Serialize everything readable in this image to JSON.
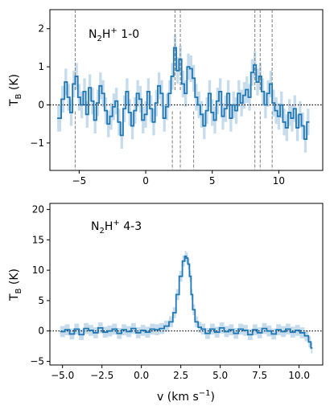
{
  "chart_data": [
    {
      "type": "line",
      "annotation": {
        "main": "N",
        "sub": "2",
        "mid": "H",
        "sup": "+",
        "tail": "  1-0"
      },
      "ylabel": {
        "main": "T",
        "sub": "B",
        "tail": " (K)"
      },
      "xlim": [
        -7.2,
        13.3
      ],
      "ylim": [
        -1.72,
        2.5
      ],
      "xticks": [
        -5,
        0,
        5,
        10
      ],
      "xtick_labels": [
        "−5",
        "0",
        "5",
        "10"
      ],
      "yticks": [
        -1,
        0,
        1,
        2
      ],
      "ytick_labels": [
        "−1",
        "0",
        "1",
        "2"
      ],
      "zero_line": 0,
      "components_top": [
        -5.3,
        2.2,
        2.6,
        8.2,
        8.6,
        9.5
      ],
      "components_bottom": [
        -5.3,
        2.0,
        2.6,
        3.6,
        8.2,
        8.6,
        9.5
      ],
      "line_color": "#1f77b4",
      "band_color": "#c6dcec",
      "series": [
        {
          "x": [
            -6.5,
            -6.2,
            -6.0,
            -5.8,
            -5.6,
            -5.4,
            -5.2,
            -5.0,
            -4.8,
            -4.6,
            -4.4,
            -4.2,
            -4.0,
            -3.8,
            -3.6,
            -3.4,
            -3.2,
            -3.0,
            -2.8,
            -2.6,
            -2.4,
            -2.2,
            -2.0,
            -1.8,
            -1.6,
            -1.4,
            -1.2,
            -1.0,
            -0.8,
            -0.6,
            -0.4,
            -0.2,
            0.0,
            0.2,
            0.4,
            0.6,
            0.8,
            1.0,
            1.2,
            1.4,
            1.6,
            1.8,
            2.0,
            2.2,
            2.4,
            2.6,
            2.8,
            3.0,
            3.2,
            3.4,
            3.6,
            3.8,
            4.0,
            4.2,
            4.4,
            4.6,
            4.8,
            5.0,
            5.2,
            5.4,
            5.6,
            5.8,
            6.0,
            6.2,
            6.4,
            6.6,
            6.8,
            7.0,
            7.2,
            7.4,
            7.6,
            7.8,
            8.0,
            8.2,
            8.4,
            8.6,
            8.8,
            9.0,
            9.2,
            9.4,
            9.6,
            9.8,
            10.0,
            10.2,
            10.4,
            10.6,
            10.8,
            11.0,
            11.2,
            11.4,
            11.6,
            11.8,
            12.0,
            12.2
          ],
          "y": [
            -0.35,
            0.15,
            0.6,
            0.2,
            -0.2,
            0.55,
            0.75,
            0.2,
            0.0,
            0.35,
            -0.25,
            0.45,
            0.1,
            -0.4,
            0.05,
            0.5,
            0.3,
            -0.15,
            -0.5,
            -0.3,
            -0.05,
            0.1,
            -0.45,
            -0.8,
            -0.1,
            0.35,
            -0.2,
            -0.55,
            -0.15,
            0.3,
            0.15,
            -0.4,
            -0.25,
            0.35,
            -0.1,
            -0.45,
            0.05,
            0.5,
            0.3,
            -0.35,
            -0.05,
            0.3,
            0.75,
            1.5,
            0.9,
            1.2,
            0.55,
            0.3,
            1.0,
            0.95,
            0.7,
            0.2,
            0.0,
            -0.25,
            -0.55,
            -0.15,
            0.3,
            -0.2,
            -0.4,
            0.1,
            0.35,
            -0.3,
            -0.1,
            0.3,
            -0.35,
            0.0,
            -0.15,
            0.3,
            0.05,
            0.25,
            0.4,
            0.2,
            0.85,
            1.05,
            0.6,
            0.75,
            0.35,
            0.0,
            0.3,
            0.55,
            0.05,
            -0.15,
            -0.3,
            0.0,
            -0.45,
            -0.6,
            -0.2,
            -0.35,
            -0.1,
            -0.6,
            -0.25,
            -0.55,
            -0.9,
            -0.45
          ],
          "err": 0.35
        }
      ]
    },
    {
      "type": "line",
      "annotation": {
        "main": "N",
        "sub": "2",
        "mid": "H",
        "sup": "+",
        "tail": "  4-3"
      },
      "ylabel": {
        "main": "T",
        "sub": "B",
        "tail": " (K)"
      },
      "xlabel": {
        "main": "v (km s",
        "sup": "−1",
        "tail": ")"
      },
      "xlim": [
        -5.8,
        11.5
      ],
      "ylim": [
        -5.6,
        21.0
      ],
      "xticks": [
        -5.0,
        -2.5,
        0.0,
        2.5,
        5.0,
        7.5,
        10.0
      ],
      "xtick_labels": [
        "−5.0",
        "−2.5",
        "0.0",
        "2.5",
        "5.0",
        "7.5",
        "10.0"
      ],
      "yticks": [
        -5,
        0,
        5,
        10,
        15,
        20
      ],
      "ytick_labels": [
        "−5",
        "0",
        "5",
        "10",
        "15",
        "20"
      ],
      "zero_line": 0,
      "line_color": "#1f77b4",
      "band_color": "#c6dcec",
      "series": [
        {
          "x": [
            -5.0,
            -4.7,
            -4.4,
            -4.1,
            -3.8,
            -3.5,
            -3.2,
            -2.9,
            -2.6,
            -2.3,
            -2.0,
            -1.7,
            -1.4,
            -1.1,
            -0.8,
            -0.5,
            -0.2,
            0.1,
            0.4,
            0.7,
            1.0,
            1.3,
            1.6,
            1.9,
            2.1,
            2.3,
            2.5,
            2.7,
            2.8,
            2.9,
            3.0,
            3.1,
            3.2,
            3.3,
            3.5,
            3.7,
            3.9,
            4.2,
            4.5,
            4.8,
            5.1,
            5.4,
            5.7,
            6.0,
            6.3,
            6.6,
            6.9,
            7.2,
            7.5,
            7.8,
            8.1,
            8.4,
            8.7,
            9.0,
            9.3,
            9.6,
            9.9,
            10.2,
            10.5,
            10.7,
            10.8
          ],
          "y": [
            -0.1,
            0.2,
            -0.5,
            0.3,
            -0.6,
            0.4,
            0.1,
            -0.3,
            0.5,
            -0.2,
            0.0,
            0.3,
            -0.4,
            0.2,
            -0.1,
            0.4,
            -0.3,
            0.1,
            -0.2,
            0.3,
            0.2,
            0.4,
            0.8,
            1.5,
            3.0,
            6.0,
            9.0,
            11.5,
            12.3,
            12.0,
            11.0,
            9.0,
            6.0,
            3.5,
            1.5,
            0.6,
            0.3,
            -0.4,
            0.3,
            -0.2,
            0.5,
            -0.1,
            0.2,
            -0.4,
            0.3,
            0.1,
            -0.6,
            0.2,
            -0.3,
            0.4,
            0.0,
            -0.5,
            0.2,
            -0.1,
            0.3,
            -0.2,
            0.1,
            -0.3,
            -0.8,
            -1.8,
            -2.8
          ],
          "err": 0.9
        }
      ]
    }
  ]
}
